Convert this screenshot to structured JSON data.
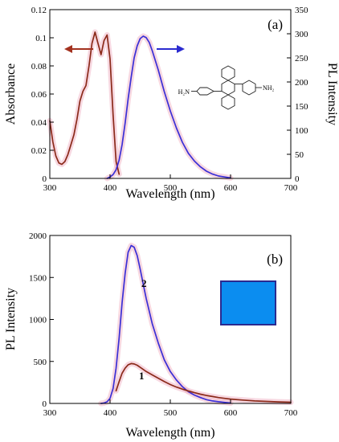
{
  "chart_data": [
    {
      "panel": "(a)",
      "type": "line",
      "xlabel": "Wavelength (nm)",
      "ylabel": "Absorbance",
      "y2label": "PL Intensity",
      "xlim": [
        300,
        700
      ],
      "ylim": [
        0,
        0.12
      ],
      "y2lim": [
        0,
        350
      ],
      "xticks": [
        "300",
        "400",
        "500",
        "600",
        "700"
      ],
      "yticks": [
        "0",
        "0.02",
        "0.04",
        "0.06",
        "0.08",
        "0.1",
        "0.12"
      ],
      "y2ticks": [
        "0",
        "50",
        "100",
        "150",
        "200",
        "250",
        "300",
        "350"
      ],
      "inset_labels": {
        "left": "H₂N",
        "right": "NH₂"
      },
      "series": [
        {
          "axis": "left",
          "color": "#8b2a1a",
          "glow": "#f0b8c8",
          "x": [
            300,
            305,
            310,
            315,
            320,
            325,
            330,
            335,
            340,
            345,
            350,
            355,
            360,
            365,
            370,
            375,
            380,
            385,
            390,
            395,
            400,
            405,
            410,
            415
          ],
          "y": [
            0.041,
            0.026,
            0.016,
            0.011,
            0.01,
            0.012,
            0.017,
            0.024,
            0.031,
            0.042,
            0.055,
            0.062,
            0.066,
            0.08,
            0.096,
            0.104,
            0.096,
            0.088,
            0.098,
            0.102,
            0.085,
            0.045,
            0.012,
            0.003
          ]
        },
        {
          "axis": "right",
          "color": "#3b2fd6",
          "glow": "#f0b8c8",
          "x": [
            395,
            400,
            405,
            410,
            415,
            420,
            425,
            430,
            435,
            440,
            445,
            450,
            455,
            460,
            465,
            470,
            480,
            490,
            500,
            510,
            520,
            530,
            540,
            550,
            560,
            570,
            580,
            590,
            600
          ],
          "y": [
            0,
            3,
            8,
            18,
            38,
            70,
            115,
            165,
            210,
            250,
            275,
            290,
            295,
            292,
            282,
            265,
            225,
            180,
            140,
            105,
            75,
            52,
            36,
            24,
            15,
            9,
            5,
            3,
            1
          ]
        }
      ]
    },
    {
      "panel": "(b)",
      "type": "line",
      "xlabel": "Wavelength (nm)",
      "ylabel": "PL Intensity",
      "xlim": [
        300,
        700
      ],
      "ylim": [
        0,
        2000
      ],
      "xticks": [
        "300",
        "400",
        "500",
        "600",
        "700"
      ],
      "yticks": [
        "0",
        "500",
        "1000",
        "1500",
        "2000"
      ],
      "inset_color": "#0b8df0",
      "series": [
        {
          "name": "2",
          "color": "#3b2fd6",
          "glow": "#f0b8c8",
          "x": [
            385,
            390,
            395,
            400,
            405,
            410,
            415,
            420,
            425,
            430,
            435,
            440,
            445,
            450,
            455,
            460,
            470,
            480,
            490,
            500,
            510,
            520,
            530,
            540,
            550,
            560,
            570,
            580,
            590,
            600
          ],
          "y": [
            0,
            5,
            20,
            60,
            180,
            420,
            780,
            1200,
            1550,
            1800,
            1880,
            1860,
            1760,
            1600,
            1420,
            1250,
            950,
            720,
            520,
            380,
            280,
            200,
            140,
            100,
            70,
            45,
            30,
            20,
            12,
            5
          ]
        },
        {
          "name": "1",
          "color": "#8b2a1a",
          "glow": "#f0b8c8",
          "x": [
            410,
            415,
            420,
            425,
            430,
            435,
            440,
            445,
            450,
            455,
            460,
            470,
            480,
            490,
            500,
            510,
            520,
            530,
            540,
            550,
            560,
            570,
            580,
            590,
            600,
            620,
            640,
            660,
            680,
            700
          ],
          "y": [
            150,
            260,
            360,
            420,
            460,
            475,
            470,
            455,
            430,
            405,
            380,
            340,
            300,
            260,
            225,
            195,
            170,
            148,
            128,
            110,
            95,
            82,
            70,
            60,
            52,
            40,
            30,
            24,
            18,
            14
          ]
        }
      ]
    }
  ]
}
